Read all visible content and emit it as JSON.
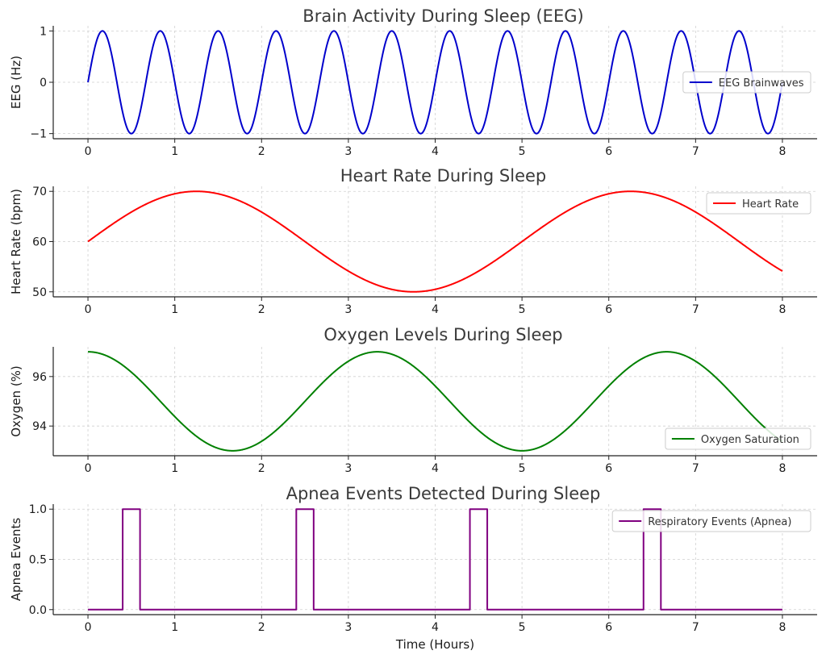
{
  "chart_data": [
    {
      "type": "line",
      "title": "Brain Activity During Sleep (EEG)",
      "xlabel": "",
      "ylabel": "EEG (Hz)",
      "xlim": [
        -0.4,
        8.4
      ],
      "ylim": [
        -1.1,
        1.1
      ],
      "xticks": [
        0,
        1,
        2,
        3,
        4,
        5,
        6,
        7,
        8
      ],
      "yticks": [
        -1,
        0,
        1
      ],
      "ytick_labels": [
        "−1",
        "0",
        "1"
      ],
      "grid": true,
      "legend_position": "center-right",
      "series": [
        {
          "name": "EEG Brainwaves",
          "color": "#0000cc",
          "function": "sin",
          "amplitude": 1,
          "offset": 0,
          "period_hours": 0.6667,
          "phase": 0,
          "x_range": [
            0,
            8
          ]
        }
      ]
    },
    {
      "type": "line",
      "title": "Heart Rate During Sleep",
      "xlabel": "",
      "ylabel": "Heart Rate (bpm)",
      "xlim": [
        -0.4,
        8.4
      ],
      "ylim": [
        49,
        71
      ],
      "xticks": [
        0,
        1,
        2,
        3,
        4,
        5,
        6,
        7,
        8
      ],
      "yticks": [
        50,
        60,
        70
      ],
      "ytick_labels": [
        "50",
        "60",
        "70"
      ],
      "grid": true,
      "legend_position": "top-right",
      "series": [
        {
          "name": "Heart Rate",
          "color": "#ff0000",
          "function": "sin",
          "amplitude": 10,
          "offset": 60,
          "period_hours": 5,
          "phase": 0,
          "x_range": [
            0,
            8
          ]
        }
      ]
    },
    {
      "type": "line",
      "title": "Oxygen Levels During Sleep",
      "xlabel": "",
      "ylabel": "Oxygen (%)",
      "xlim": [
        -0.4,
        8.4
      ],
      "ylim": [
        92.8,
        97.2
      ],
      "xticks": [
        0,
        1,
        2,
        3,
        4,
        5,
        6,
        7,
        8
      ],
      "yticks": [
        94,
        96
      ],
      "ytick_labels": [
        "94",
        "96"
      ],
      "grid": true,
      "legend_position": "bottom-right",
      "series": [
        {
          "name": "Oxygen Saturation",
          "color": "#008000",
          "function": "cos",
          "amplitude": 2,
          "offset": 95,
          "period_hours": 3.3333,
          "phase": 0,
          "x_range": [
            0,
            8
          ]
        }
      ]
    },
    {
      "type": "line",
      "title": "Apnea Events Detected During Sleep",
      "xlabel": "Time (Hours)",
      "ylabel": "Apnea Events",
      "xlim": [
        -0.4,
        8.4
      ],
      "ylim": [
        -0.05,
        1.05
      ],
      "xticks": [
        0,
        1,
        2,
        3,
        4,
        5,
        6,
        7,
        8
      ],
      "yticks": [
        0,
        0.5,
        1
      ],
      "ytick_labels": [
        "0.0",
        "0.5",
        "1.0"
      ],
      "grid": true,
      "legend_position": "top-right",
      "series": [
        {
          "name": "Respiratory Events (Apnea)",
          "color": "#800080",
          "function": "pulses",
          "x_range": [
            0,
            8
          ],
          "pulses": [
            [
              0.4,
              0.6
            ],
            [
              2.4,
              2.6
            ],
            [
              4.4,
              4.6
            ],
            [
              6.4,
              6.6
            ]
          ]
        }
      ]
    }
  ]
}
